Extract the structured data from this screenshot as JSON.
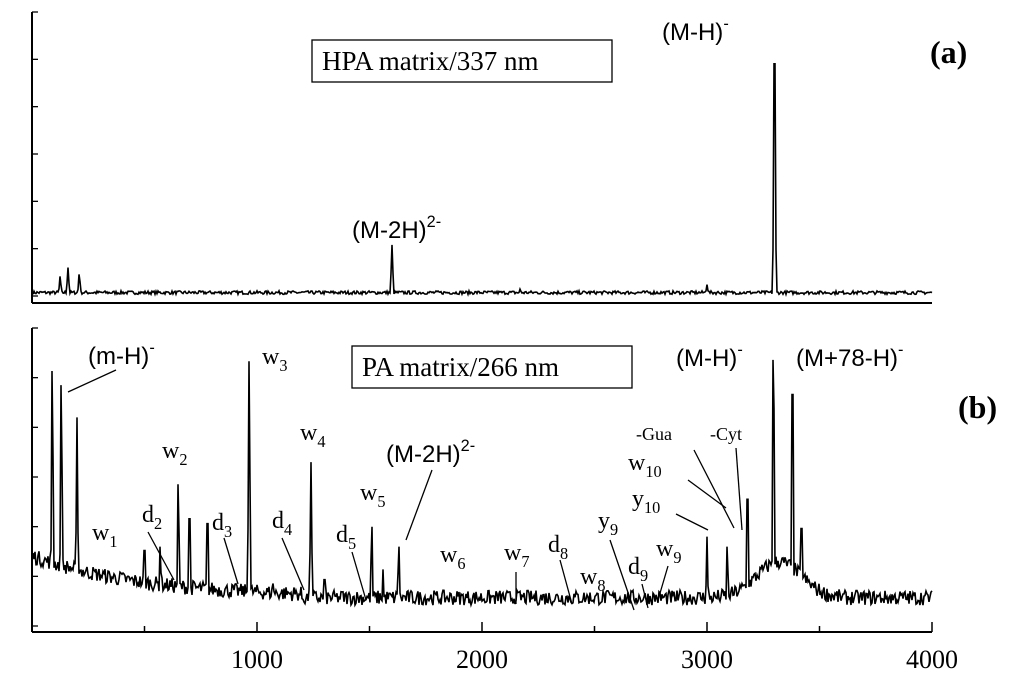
{
  "chart_data": [
    {
      "type": "line",
      "panel_label": "(a)",
      "legend_box": "HPA matrix/337 nm",
      "xlim": [
        0,
        4000
      ],
      "ylim": [
        0,
        1
      ],
      "peaks": [
        {
          "x": 125,
          "y": 0.07
        },
        {
          "x": 160,
          "y": 0.1
        },
        {
          "x": 210,
          "y": 0.08
        },
        {
          "x": 1600,
          "y": 0.18
        },
        {
          "x": 2170,
          "y": 0.025
        },
        {
          "x": 3000,
          "y": 0.04
        },
        {
          "x": 3300,
          "y": 1.0
        }
      ],
      "annotations": [
        {
          "text": "(M-2H)",
          "sup": "2-",
          "x": 1600
        },
        {
          "text": "(M-H)",
          "sup": "-",
          "x": 3300
        }
      ]
    },
    {
      "type": "line",
      "panel_label": "(b)",
      "legend_box": "PA matrix/266 nm",
      "xlabel": "",
      "xlim": [
        0,
        4000
      ],
      "ylim": [
        0,
        1
      ],
      "x_ticks": [
        1000,
        2000,
        3000,
        4000
      ],
      "peaks": [
        {
          "x": 90,
          "y": 0.9
        },
        {
          "x": 130,
          "y": 0.85
        },
        {
          "x": 200,
          "y": 0.7
        },
        {
          "x": 320,
          "y": 0.17
        },
        {
          "x": 395,
          "y": 0.18
        },
        {
          "x": 500,
          "y": 0.31
        },
        {
          "x": 570,
          "y": 0.28
        },
        {
          "x": 650,
          "y": 0.5
        },
        {
          "x": 700,
          "y": 0.44
        },
        {
          "x": 780,
          "y": 0.42
        },
        {
          "x": 965,
          "y": 0.9
        },
        {
          "x": 1070,
          "y": 0.15
        },
        {
          "x": 1240,
          "y": 0.55
        },
        {
          "x": 1300,
          "y": 0.19
        },
        {
          "x": 1380,
          "y": 0.14
        },
        {
          "x": 1510,
          "y": 0.35
        },
        {
          "x": 1560,
          "y": 0.19
        },
        {
          "x": 1630,
          "y": 0.28
        },
        {
          "x": 1860,
          "y": 0.12
        },
        {
          "x": 2150,
          "y": 0.09
        },
        {
          "x": 2460,
          "y": 0.07
        },
        {
          "x": 2720,
          "y": 0.05
        },
        {
          "x": 2800,
          "y": 0.06
        },
        {
          "x": 3000,
          "y": 0.3
        },
        {
          "x": 3090,
          "y": 0.28
        },
        {
          "x": 3180,
          "y": 0.52
        },
        {
          "x": 3295,
          "y": 1.0
        },
        {
          "x": 3380,
          "y": 0.95
        },
        {
          "x": 3420,
          "y": 0.4
        }
      ],
      "annotations": [
        {
          "text": "(m-H)",
          "sup": "-"
        },
        {
          "text": "w",
          "sub": "1"
        },
        {
          "text": "d",
          "sub": "2"
        },
        {
          "text": "w",
          "sub": "2"
        },
        {
          "text": "w",
          "sub": "3"
        },
        {
          "text": "d",
          "sub": "3"
        },
        {
          "text": "d",
          "sub": "4"
        },
        {
          "text": "w",
          "sub": "4"
        },
        {
          "text": "d",
          "sub": "5"
        },
        {
          "text": "w",
          "sub": "5"
        },
        {
          "text": "(M-2H)",
          "sup": "2-"
        },
        {
          "text": "w",
          "sub": "6"
        },
        {
          "text": "w",
          "sub": "7"
        },
        {
          "text": "d",
          "sub": "8"
        },
        {
          "text": "w",
          "sub": "8"
        },
        {
          "text": "y",
          "sub": "9"
        },
        {
          "text": "d",
          "sub": "9"
        },
        {
          "text": "w",
          "sub": "9"
        },
        {
          "text": "y",
          "sub": "10"
        },
        {
          "text": "w",
          "sub": "10"
        },
        {
          "text": "-Gua"
        },
        {
          "text": "-Cyt"
        },
        {
          "text": "(M-H)",
          "sup": "-"
        },
        {
          "text": "(M+78-H)",
          "sup": "-"
        }
      ]
    }
  ]
}
